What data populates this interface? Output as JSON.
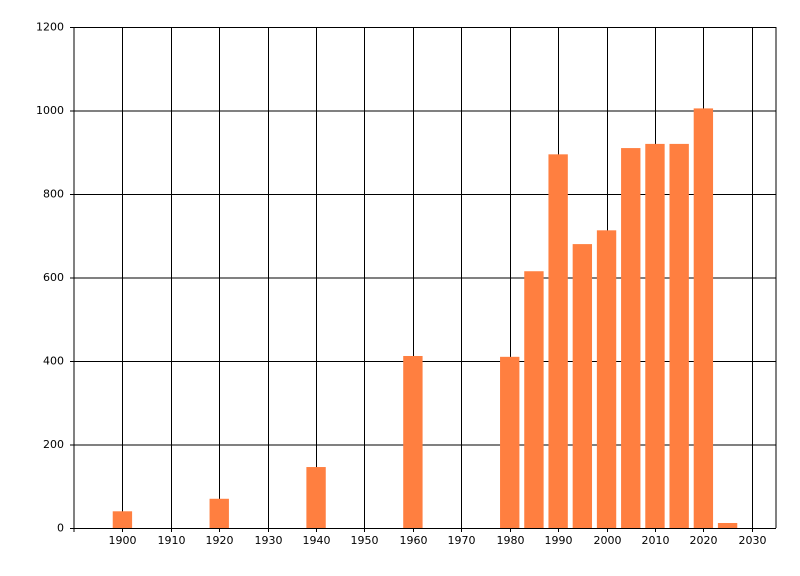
{
  "chart_data": {
    "type": "bar",
    "x": [
      1900,
      1920,
      1940,
      1960,
      1980,
      1985,
      1990,
      1995,
      2000,
      2005,
      2010,
      2015,
      2020,
      2025
    ],
    "values": [
      40,
      70,
      146,
      412,
      410,
      615,
      895,
      680,
      713,
      910,
      920,
      920,
      1005,
      12
    ],
    "color": "#ff7f40",
    "xlim": [
      1890,
      2035
    ],
    "xticks": [
      1900,
      1910,
      1920,
      1930,
      1940,
      1950,
      1960,
      1970,
      1980,
      1990,
      2000,
      2010,
      2020,
      2030
    ],
    "ylim": [
      0,
      1200
    ],
    "yticks": [
      0,
      200,
      400,
      600,
      800,
      1000,
      1200
    ],
    "grid": true
  }
}
